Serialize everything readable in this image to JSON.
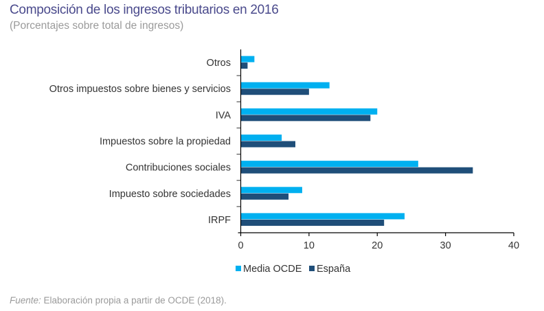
{
  "header": {
    "title": "Composición de los ingresos tributarios en 2016",
    "subtitle": "(Porcentajes sobre total de ingresos)"
  },
  "footer": {
    "source_label": "Fuente:",
    "source_text": " Elaboración propia a partir de OCDE (2018)."
  },
  "chart_data": {
    "type": "bar",
    "orientation": "horizontal",
    "title": "Composición de los ingresos tributarios en 2016",
    "subtitle": "(Porcentajes sobre total de ingresos)",
    "xlabel": "",
    "ylabel": "",
    "categories": [
      "Otros",
      "Otros impuestos sobre bienes y servicios",
      "IVA",
      "Impuestos sobre la propiedad",
      "Contribuciones sociales",
      "Impuesto sobre sociedades",
      "IRPF"
    ],
    "series": [
      {
        "name": "Media OCDE",
        "color": "#00b0f0",
        "values": [
          2,
          13,
          20,
          6,
          26,
          9,
          24
        ]
      },
      {
        "name": "España",
        "color": "#1f4e79",
        "values": [
          1,
          10,
          19,
          8,
          34,
          7,
          21
        ]
      }
    ],
    "xlim": [
      0,
      40
    ],
    "xticks": [
      0,
      10,
      20,
      30,
      40
    ],
    "grid": false,
    "legend_position": "bottom"
  }
}
